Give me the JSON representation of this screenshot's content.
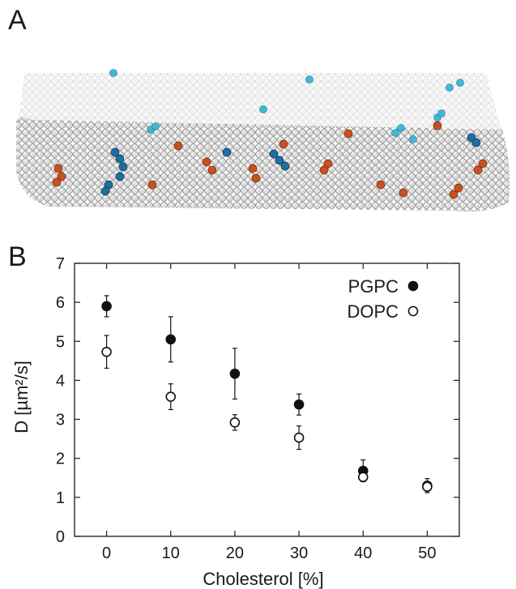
{
  "panels": {
    "a_label": "A",
    "b_label": "B"
  },
  "membrane_image": {
    "lipid_color": "#d6d6d6",
    "pgpc_color": "#1f6fa0",
    "pgpc_light_color": "#3fb8d8",
    "cholesterol_color": "#c9501f"
  },
  "chart_data": {
    "type": "scatter",
    "xlabel": "Cholesterol [%]",
    "ylabel": "D [µm²/s]",
    "xlim": [
      -5,
      55
    ],
    "ylim": [
      0,
      7
    ],
    "xticks": [
      0,
      10,
      20,
      30,
      40,
      50
    ],
    "yticks": [
      0,
      1,
      2,
      3,
      4,
      5,
      6,
      7
    ],
    "grid": false,
    "legend": "top-right",
    "series": [
      {
        "name": "PGPC",
        "marker": "filled-circle",
        "color": "#111111",
        "x": [
          0,
          10,
          20,
          30,
          40,
          50
        ],
        "y": [
          5.9,
          5.05,
          4.17,
          3.38,
          1.68,
          1.3
        ],
        "err": [
          0.27,
          0.58,
          0.65,
          0.27,
          0.28,
          0.18
        ]
      },
      {
        "name": "DOPC",
        "marker": "open-circle",
        "color": "#111111",
        "x": [
          0,
          10,
          20,
          30,
          40,
          50
        ],
        "y": [
          4.73,
          3.58,
          2.92,
          2.53,
          1.52,
          1.27
        ],
        "err": [
          0.42,
          0.33,
          0.2,
          0.3,
          0.07,
          0.1
        ]
      }
    ]
  }
}
